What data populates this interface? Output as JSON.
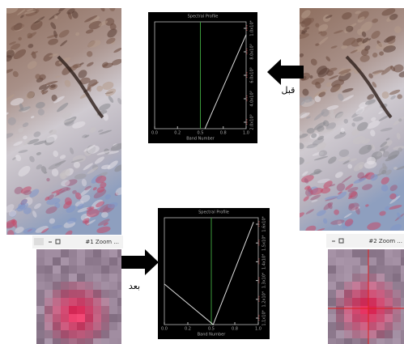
{
  "before_label": "قبل",
  "after_label": "بعد",
  "profile_top": {
    "title": "Spectral Profile",
    "x_label": "Band Number",
    "x_ticks": [
      "0.0",
      "0.2",
      "0.5",
      "0.8",
      "1.0"
    ],
    "y_ticks": [
      "1.0x10⁴",
      "8.0x10³",
      "6.0x10³",
      "4.0x10³",
      "2.0x10³"
    ]
  },
  "profile_bottom": {
    "title": "Spectral Profile",
    "x_label": "Band Number",
    "x_ticks": [
      "0.0",
      "0.2",
      "0.5",
      "0.8",
      "1.0"
    ],
    "y_ticks": [
      "1.6x10⁴",
      "1.5x10⁴",
      "1.4x10⁴",
      "1.3x10⁴",
      "1.2x10⁴",
      "1.1x10⁴"
    ]
  },
  "zoom_left": {
    "title": "#1 Zoom ..."
  },
  "zoom_right": {
    "title": "#2 Zoom ..."
  }
}
